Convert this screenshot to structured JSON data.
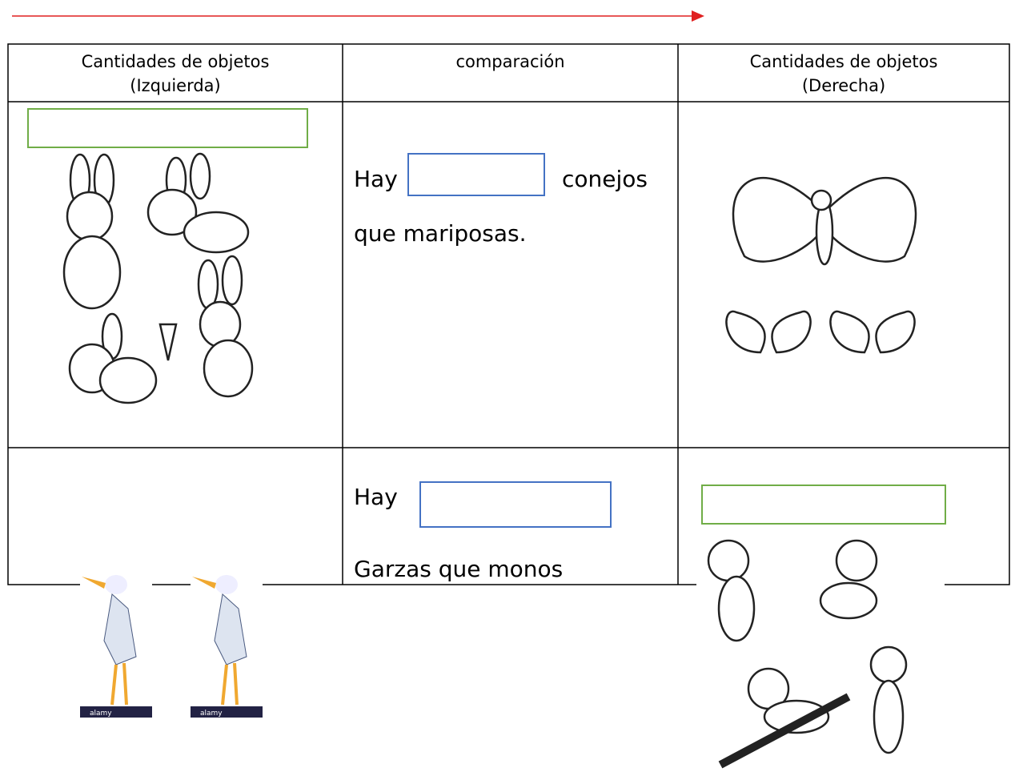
{
  "table": {
    "headers": [
      [
        "Cantidades de objetos",
        "(Izquierda)"
      ],
      [
        "comparación"
      ],
      [
        "Cantidades de objetos",
        "(Derecha)"
      ]
    ],
    "rows": [
      [
        "Hay",
        "conejos",
        "que mariposas."
      ],
      [
        "Hay",
        "Garzas que monos"
      ]
    ]
  },
  "watermarks": [
    "alamy",
    "alamy"
  ]
}
